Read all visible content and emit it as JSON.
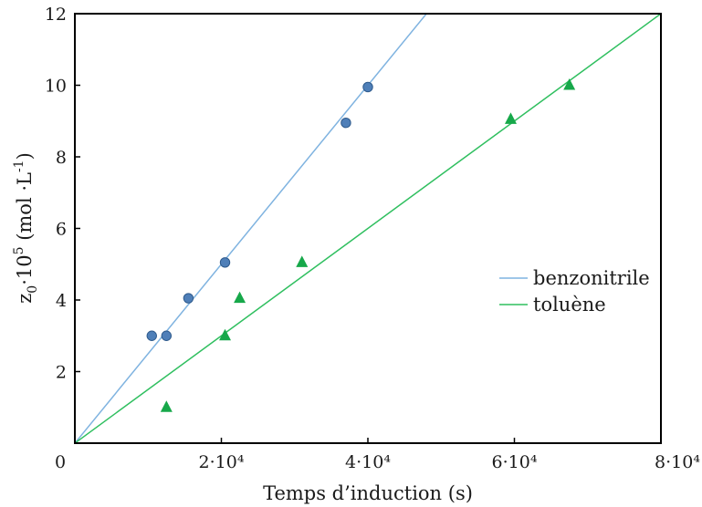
{
  "chart_data": {
    "type": "scatter",
    "title": "",
    "xlabel": "Temps d’induction (s)",
    "ylabel": "z₀·10⁵ (mol ·L⁻¹)",
    "xlim": [
      0,
      80000
    ],
    "ylim": [
      0,
      12
    ],
    "x_ticks": [
      {
        "value": 0,
        "label": "0"
      },
      {
        "value": 20000,
        "label": "2·10⁴"
      },
      {
        "value": 40000,
        "label": "4·10⁴"
      },
      {
        "value": 60000,
        "label": "6·10⁴"
      },
      {
        "value": 80000,
        "label": "8·10⁴"
      }
    ],
    "y_ticks": [
      {
        "value": 2,
        "label": "2"
      },
      {
        "value": 4,
        "label": "4"
      },
      {
        "value": 6,
        "label": "6"
      },
      {
        "value": 8,
        "label": "8"
      },
      {
        "value": 10,
        "label": "10"
      },
      {
        "value": 12,
        "label": "12"
      }
    ],
    "grid": false,
    "legend_position": "right",
    "series": [
      {
        "name": "benzonitrile",
        "marker": "circle",
        "line_color": "#7fb3e0",
        "marker_color": "#4f7fb8",
        "points": [
          {
            "x": 10500,
            "y": 3.0
          },
          {
            "x": 12500,
            "y": 3.0
          },
          {
            "x": 15500,
            "y": 4.05
          },
          {
            "x": 20500,
            "y": 5.05
          },
          {
            "x": 37000,
            "y": 8.95
          },
          {
            "x": 40000,
            "y": 9.95
          }
        ],
        "fit_line": {
          "x0": 0,
          "y0": 0,
          "slope": 0.00025
        }
      },
      {
        "name": "toluène",
        "marker": "triangle",
        "line_color": "#2fbf5f",
        "marker_color": "#17a84a",
        "points": [
          {
            "x": 12500,
            "y": 1.0
          },
          {
            "x": 20500,
            "y": 3.0
          },
          {
            "x": 22500,
            "y": 4.05
          },
          {
            "x": 31000,
            "y": 5.05
          },
          {
            "x": 59500,
            "y": 9.05
          },
          {
            "x": 67500,
            "y": 10.0
          }
        ],
        "fit_line": {
          "x0": 0,
          "y0": 0,
          "slope": 0.00015
        }
      }
    ]
  }
}
